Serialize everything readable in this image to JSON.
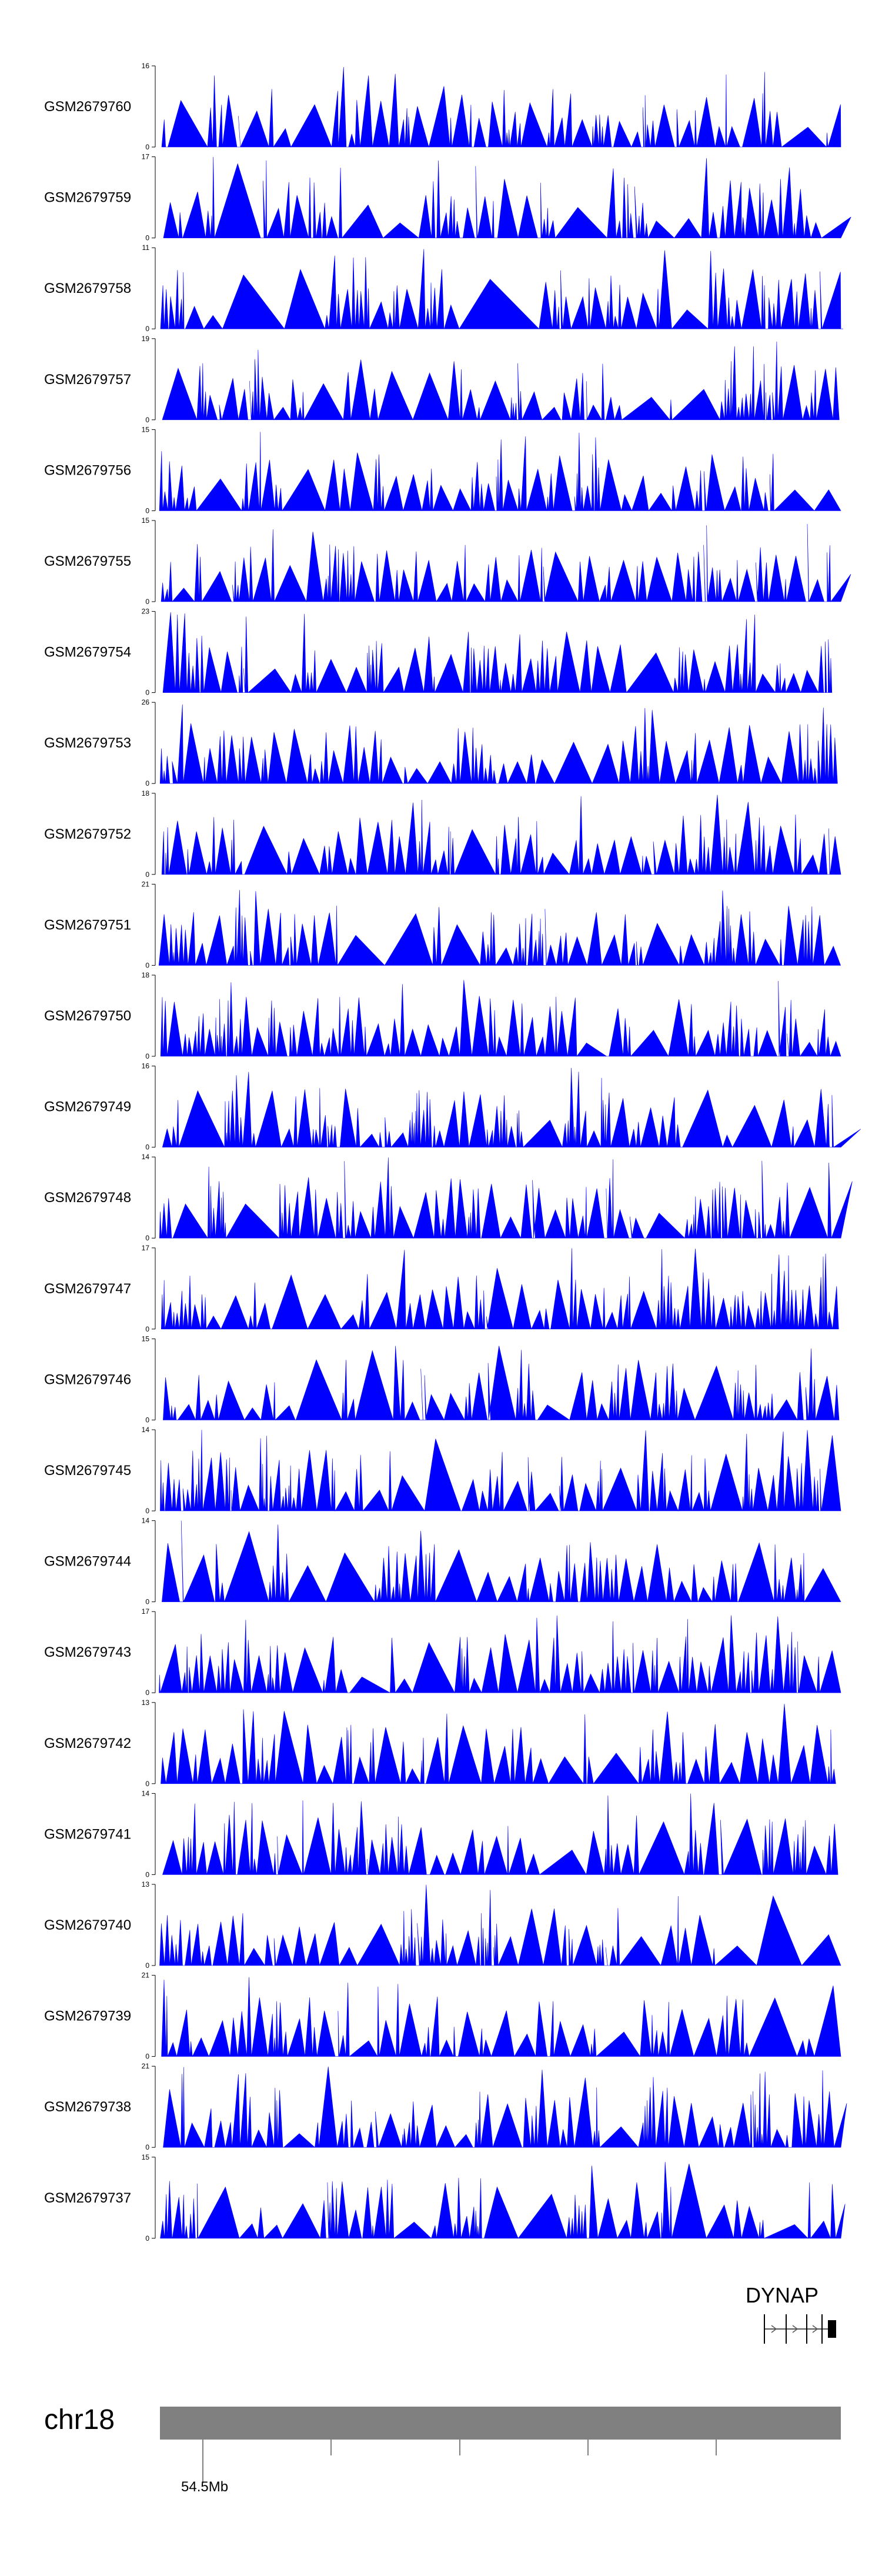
{
  "chart_data": {
    "type": "area",
    "chromosome": "chr18",
    "gene": "DYNAP",
    "position_label": "54.5Mb",
    "fill_color": "#0000ff",
    "ideogram_color": "#808080",
    "tracks": [
      {
        "name": "GSM2679760",
        "ymax": 16,
        "ymin": 0
      },
      {
        "name": "GSM2679759",
        "ymax": 17,
        "ymin": 0
      },
      {
        "name": "GSM2679758",
        "ymax": 11,
        "ymin": 0
      },
      {
        "name": "GSM2679757",
        "ymax": 19,
        "ymin": 0
      },
      {
        "name": "GSM2679756",
        "ymax": 15,
        "ymin": 0
      },
      {
        "name": "GSM2679755",
        "ymax": 15,
        "ymin": 0
      },
      {
        "name": "GSM2679754",
        "ymax": 23,
        "ymin": 0
      },
      {
        "name": "GSM2679753",
        "ymax": 26,
        "ymin": 0
      },
      {
        "name": "GSM2679752",
        "ymax": 18,
        "ymin": 0
      },
      {
        "name": "GSM2679751",
        "ymax": 21,
        "ymin": 0
      },
      {
        "name": "GSM2679750",
        "ymax": 18,
        "ymin": 0
      },
      {
        "name": "GSM2679749",
        "ymax": 16,
        "ymin": 0
      },
      {
        "name": "GSM2679748",
        "ymax": 14,
        "ymin": 0
      },
      {
        "name": "GSM2679747",
        "ymax": 17,
        "ymin": 0
      },
      {
        "name": "GSM2679746",
        "ymax": 15,
        "ymin": 0
      },
      {
        "name": "GSM2679745",
        "ymax": 14,
        "ymin": 0
      },
      {
        "name": "GSM2679744",
        "ymax": 14,
        "ymin": 0
      },
      {
        "name": "GSM2679743",
        "ymax": 17,
        "ymin": 0
      },
      {
        "name": "GSM2679742",
        "ymax": 13,
        "ymin": 0
      },
      {
        "name": "GSM2679741",
        "ymax": 14,
        "ymin": 0
      },
      {
        "name": "GSM2679740",
        "ymax": 13,
        "ymin": 0
      },
      {
        "name": "GSM2679739",
        "ymax": 21,
        "ymin": 0
      },
      {
        "name": "GSM2679738",
        "ymax": 21,
        "ymin": 0
      },
      {
        "name": "GSM2679737",
        "ymax": 15,
        "ymin": 0
      }
    ]
  }
}
